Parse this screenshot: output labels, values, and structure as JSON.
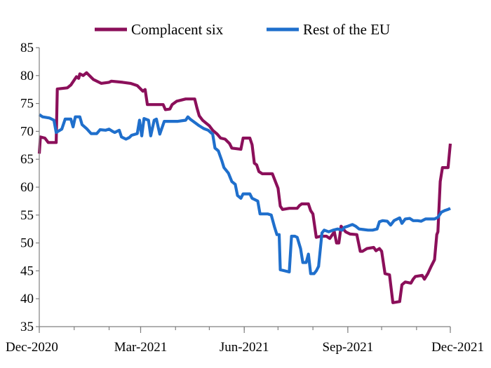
{
  "chart_data": {
    "type": "line",
    "title": "",
    "xlabel": "",
    "ylabel": "",
    "ylim": [
      35,
      85
    ],
    "yticks": [
      35,
      40,
      45,
      50,
      55,
      60,
      65,
      70,
      75,
      80,
      85
    ],
    "xlim": [
      "2020-12-01",
      "2021-12-01"
    ],
    "xticks": [
      {
        "date": "2020-12-01",
        "label": "Dec-2020"
      },
      {
        "date": "2021-03-01",
        "label": "Mar-2021"
      },
      {
        "date": "2021-06-01",
        "label": "Jun-2021"
      },
      {
        "date": "2021-09-01",
        "label": "Sep-2021"
      },
      {
        "date": "2021-12-01",
        "label": "Dec-2021"
      }
    ],
    "grid": false,
    "legend_position": "top-center",
    "series": [
      {
        "name": "Complacent six",
        "color": "#8B0F5A",
        "points": [
          [
            "2020-12-01",
            66.0
          ],
          [
            "2020-12-02",
            69.0
          ],
          [
            "2020-12-06",
            68.8
          ],
          [
            "2020-12-09",
            68.0
          ],
          [
            "2020-12-16",
            68.0
          ],
          [
            "2020-12-17",
            77.6
          ],
          [
            "2020-12-26",
            77.8
          ],
          [
            "2020-12-29",
            78.3
          ],
          [
            "2021-01-01",
            79.2
          ],
          [
            "2021-01-03",
            79.8
          ],
          [
            "2021-01-05",
            79.5
          ],
          [
            "2021-01-06",
            80.3
          ],
          [
            "2021-01-09",
            80.0
          ],
          [
            "2021-01-12",
            80.5
          ],
          [
            "2021-01-18",
            79.3
          ],
          [
            "2021-01-25",
            78.6
          ],
          [
            "2021-02-01",
            78.8
          ],
          [
            "2021-02-03",
            79.0
          ],
          [
            "2021-02-13",
            78.8
          ],
          [
            "2021-02-20",
            78.6
          ],
          [
            "2021-02-26",
            78.2
          ],
          [
            "2021-03-03",
            77.2
          ],
          [
            "2021-03-05",
            77.5
          ],
          [
            "2021-03-07",
            74.8
          ],
          [
            "2021-03-16",
            74.8
          ],
          [
            "2021-03-21",
            74.8
          ],
          [
            "2021-03-23",
            73.9
          ],
          [
            "2021-03-27",
            74.0
          ],
          [
            "2021-03-29",
            74.8
          ],
          [
            "2021-04-02",
            75.4
          ],
          [
            "2021-04-06",
            75.6
          ],
          [
            "2021-04-10",
            75.8
          ],
          [
            "2021-04-18",
            75.8
          ],
          [
            "2021-04-20",
            74.2
          ],
          [
            "2021-04-22",
            72.8
          ],
          [
            "2021-04-25",
            72.0
          ],
          [
            "2021-04-28",
            71.5
          ],
          [
            "2021-05-01",
            71.0
          ],
          [
            "2021-05-04",
            70.2
          ],
          [
            "2021-05-08",
            69.5
          ],
          [
            "2021-05-11",
            68.8
          ],
          [
            "2021-05-15",
            68.6
          ],
          [
            "2021-05-19",
            67.8
          ],
          [
            "2021-05-21",
            67.0
          ],
          [
            "2021-05-29",
            66.8
          ],
          [
            "2021-05-31",
            68.8
          ],
          [
            "2021-06-06",
            68.8
          ],
          [
            "2021-06-08",
            67.6
          ],
          [
            "2021-06-10",
            64.3
          ],
          [
            "2021-06-12",
            64.0
          ],
          [
            "2021-06-14",
            62.8
          ],
          [
            "2021-06-17",
            62.4
          ],
          [
            "2021-06-23",
            62.4
          ],
          [
            "2021-06-26",
            62.4
          ],
          [
            "2021-07-01",
            59.8
          ],
          [
            "2021-07-03",
            56.6
          ],
          [
            "2021-07-05",
            56.0
          ],
          [
            "2021-07-11",
            56.2
          ],
          [
            "2021-07-18",
            56.2
          ],
          [
            "2021-07-20",
            56.7
          ],
          [
            "2021-07-22",
            57.0
          ],
          [
            "2021-07-28",
            57.0
          ],
          [
            "2021-07-30",
            55.8
          ],
          [
            "2021-08-01",
            55.2
          ],
          [
            "2021-08-04",
            51.0
          ],
          [
            "2021-08-08",
            51.2
          ],
          [
            "2021-08-13",
            51.2
          ],
          [
            "2021-08-16",
            50.8
          ],
          [
            "2021-08-20",
            52.0
          ],
          [
            "2021-08-22",
            50.0
          ],
          [
            "2021-08-24",
            50.0
          ],
          [
            "2021-08-26",
            53.0
          ],
          [
            "2021-08-30",
            52.0
          ],
          [
            "2021-09-03",
            51.6
          ],
          [
            "2021-09-09",
            51.5
          ],
          [
            "2021-09-12",
            48.5
          ],
          [
            "2021-09-14",
            48.5
          ],
          [
            "2021-09-18",
            49.0
          ],
          [
            "2021-09-24",
            49.2
          ],
          [
            "2021-09-26",
            48.6
          ],
          [
            "2021-09-29",
            49.0
          ],
          [
            "2021-10-01",
            48.5
          ],
          [
            "2021-10-04",
            44.5
          ],
          [
            "2021-10-08",
            44.3
          ],
          [
            "2021-10-11",
            39.3
          ],
          [
            "2021-10-17",
            39.5
          ],
          [
            "2021-10-19",
            42.5
          ],
          [
            "2021-10-22",
            43.0
          ],
          [
            "2021-10-27",
            42.8
          ],
          [
            "2021-10-29",
            43.5
          ],
          [
            "2021-10-31",
            44.0
          ],
          [
            "2021-11-06",
            44.2
          ],
          [
            "2021-11-08",
            43.5
          ],
          [
            "2021-11-11",
            44.5
          ],
          [
            "2021-11-14",
            45.8
          ],
          [
            "2021-11-17",
            47.0
          ],
          [
            "2021-11-19",
            51.5
          ],
          [
            "2021-11-20",
            52.0
          ],
          [
            "2021-11-22",
            61.0
          ],
          [
            "2021-11-24",
            63.5
          ],
          [
            "2021-11-29",
            63.5
          ],
          [
            "2021-12-01",
            67.8
          ]
        ]
      },
      {
        "name": "Rest of the EU",
        "color": "#1F6FCC",
        "points": [
          [
            "2020-12-01",
            73.0
          ],
          [
            "2020-12-04",
            72.6
          ],
          [
            "2020-12-10",
            72.4
          ],
          [
            "2020-12-14",
            72.0
          ],
          [
            "2020-12-16",
            69.8
          ],
          [
            "2020-12-21",
            70.4
          ],
          [
            "2020-12-24",
            72.2
          ],
          [
            "2020-12-29",
            72.2
          ],
          [
            "2020-12-31",
            70.8
          ],
          [
            "2021-01-02",
            72.6
          ],
          [
            "2021-01-06",
            72.6
          ],
          [
            "2021-01-08",
            71.2
          ],
          [
            "2021-01-12",
            70.5
          ],
          [
            "2021-01-16",
            69.6
          ],
          [
            "2021-01-21",
            69.6
          ],
          [
            "2021-01-24",
            70.3
          ],
          [
            "2021-01-29",
            70.2
          ],
          [
            "2021-02-01",
            70.4
          ],
          [
            "2021-02-04",
            70.0
          ],
          [
            "2021-02-06",
            69.8
          ],
          [
            "2021-02-10",
            70.2
          ],
          [
            "2021-02-12",
            69.0
          ],
          [
            "2021-02-16",
            68.6
          ],
          [
            "2021-02-19",
            68.9
          ],
          [
            "2021-02-21",
            69.3
          ],
          [
            "2021-02-26",
            69.6
          ],
          [
            "2021-02-28",
            72.0
          ],
          [
            "2021-03-02",
            69.2
          ],
          [
            "2021-03-04",
            72.3
          ],
          [
            "2021-03-08",
            72.0
          ],
          [
            "2021-03-10",
            69.2
          ],
          [
            "2021-03-13",
            72.0
          ],
          [
            "2021-03-15",
            72.2
          ],
          [
            "2021-03-18",
            69.5
          ],
          [
            "2021-03-22",
            71.8
          ],
          [
            "2021-03-28",
            71.8
          ],
          [
            "2021-04-03",
            71.8
          ],
          [
            "2021-04-10",
            72.0
          ],
          [
            "2021-04-12",
            72.6
          ],
          [
            "2021-04-14",
            72.2
          ],
          [
            "2021-04-18",
            71.6
          ],
          [
            "2021-04-22",
            71.0
          ],
          [
            "2021-04-26",
            70.5
          ],
          [
            "2021-04-30",
            70.2
          ],
          [
            "2021-05-04",
            69.5
          ],
          [
            "2021-05-06",
            67.0
          ],
          [
            "2021-05-09",
            66.5
          ],
          [
            "2021-05-12",
            64.8
          ],
          [
            "2021-05-14",
            63.5
          ],
          [
            "2021-05-18",
            62.5
          ],
          [
            "2021-05-21",
            61.0
          ],
          [
            "2021-05-24",
            60.5
          ],
          [
            "2021-05-26",
            58.5
          ],
          [
            "2021-05-29",
            58.0
          ],
          [
            "2021-05-31",
            58.8
          ],
          [
            "2021-06-06",
            58.8
          ],
          [
            "2021-06-08",
            58.0
          ],
          [
            "2021-06-13",
            57.5
          ],
          [
            "2021-06-15",
            55.2
          ],
          [
            "2021-06-22",
            55.2
          ],
          [
            "2021-06-25",
            55.0
          ],
          [
            "2021-06-28",
            52.8
          ],
          [
            "2021-06-30",
            51.5
          ],
          [
            "2021-07-02",
            51.5
          ],
          [
            "2021-07-03",
            45.2
          ],
          [
            "2021-07-07",
            45.0
          ],
          [
            "2021-07-11",
            44.8
          ],
          [
            "2021-07-13",
            51.2
          ],
          [
            "2021-07-16",
            51.2
          ],
          [
            "2021-07-18",
            51.0
          ],
          [
            "2021-07-21",
            49.0
          ],
          [
            "2021-07-23",
            46.5
          ],
          [
            "2021-07-26",
            46.5
          ],
          [
            "2021-07-28",
            48.0
          ],
          [
            "2021-07-30",
            44.5
          ],
          [
            "2021-08-02",
            44.5
          ],
          [
            "2021-08-04",
            45.0
          ],
          [
            "2021-08-06",
            45.8
          ],
          [
            "2021-08-09",
            51.8
          ],
          [
            "2021-08-11",
            52.3
          ],
          [
            "2021-08-15",
            52.0
          ],
          [
            "2021-08-19",
            52.3
          ],
          [
            "2021-08-23",
            52.5
          ],
          [
            "2021-08-27",
            52.3
          ],
          [
            "2021-08-29",
            52.8
          ],
          [
            "2021-09-01",
            53.0
          ],
          [
            "2021-09-05",
            53.3
          ],
          [
            "2021-09-08",
            53.0
          ],
          [
            "2021-09-11",
            52.5
          ],
          [
            "2021-09-15",
            52.4
          ],
          [
            "2021-09-19",
            52.3
          ],
          [
            "2021-09-23",
            52.3
          ],
          [
            "2021-09-27",
            52.5
          ],
          [
            "2021-09-29",
            53.8
          ],
          [
            "2021-10-02",
            54.0
          ],
          [
            "2021-10-06",
            53.9
          ],
          [
            "2021-10-09",
            53.2
          ],
          [
            "2021-10-12",
            54.0
          ],
          [
            "2021-10-15",
            54.3
          ],
          [
            "2021-10-17",
            54.5
          ],
          [
            "2021-10-19",
            53.5
          ],
          [
            "2021-10-22",
            54.3
          ],
          [
            "2021-10-26",
            54.4
          ],
          [
            "2021-10-29",
            54.0
          ],
          [
            "2021-11-02",
            54.0
          ],
          [
            "2021-11-05",
            53.9
          ],
          [
            "2021-11-09",
            54.3
          ],
          [
            "2021-11-13",
            54.3
          ],
          [
            "2021-11-17",
            54.3
          ],
          [
            "2021-11-20",
            54.6
          ],
          [
            "2021-11-23",
            55.5
          ],
          [
            "2021-11-26",
            55.8
          ],
          [
            "2021-11-29",
            56.0
          ],
          [
            "2021-12-01",
            56.2
          ]
        ]
      }
    ]
  }
}
